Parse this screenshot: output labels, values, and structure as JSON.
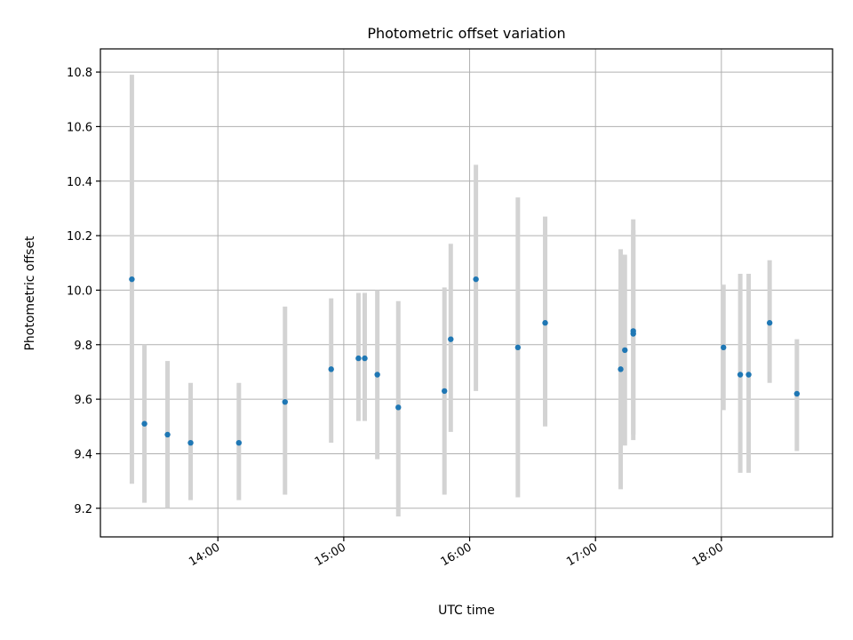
{
  "chart_data": {
    "type": "scatter",
    "title": "Photometric offset variation",
    "xlabel": "UTC time",
    "ylabel": "Photometric offset",
    "x_ticks": [
      "14:00",
      "15:00",
      "16:00",
      "17:00",
      "18:00"
    ],
    "y_ticks": [
      "9.2",
      "9.4",
      "9.6",
      "9.8",
      "10.0",
      "10.2",
      "10.4",
      "10.6",
      "10.8"
    ],
    "xlim": [
      "13:04",
      "18:53"
    ],
    "ylim": [
      9.095,
      10.885
    ],
    "grid": true,
    "colors": {
      "point": "#1f77b4",
      "errorbar": "#d3d3d3"
    },
    "points": [
      {
        "t": "13:19",
        "y": 10.04,
        "lo": 9.29,
        "hi": 10.79
      },
      {
        "t": "13:25",
        "y": 9.51,
        "lo": 9.22,
        "hi": 9.8
      },
      {
        "t": "13:36",
        "y": 9.47,
        "lo": 9.2,
        "hi": 9.74
      },
      {
        "t": "13:47",
        "y": 9.44,
        "lo": 9.23,
        "hi": 9.66
      },
      {
        "t": "14:10",
        "y": 9.44,
        "lo": 9.23,
        "hi": 9.66
      },
      {
        "t": "14:32",
        "y": 9.59,
        "lo": 9.25,
        "hi": 9.94
      },
      {
        "t": "14:54",
        "y": 9.71,
        "lo": 9.44,
        "hi": 9.97
      },
      {
        "t": "15:07",
        "y": 9.75,
        "lo": 9.52,
        "hi": 9.99
      },
      {
        "t": "15:10",
        "y": 9.75,
        "lo": 9.52,
        "hi": 9.99
      },
      {
        "t": "15:16",
        "y": 9.69,
        "lo": 9.38,
        "hi": 10.0
      },
      {
        "t": "15:26",
        "y": 9.57,
        "lo": 9.17,
        "hi": 9.96
      },
      {
        "t": "15:48",
        "y": 9.63,
        "lo": 9.25,
        "hi": 10.01
      },
      {
        "t": "15:51",
        "y": 9.82,
        "lo": 9.48,
        "hi": 10.17
      },
      {
        "t": "16:03",
        "y": 10.04,
        "lo": 9.63,
        "hi": 10.46
      },
      {
        "t": "16:23",
        "y": 9.79,
        "lo": 9.24,
        "hi": 10.34
      },
      {
        "t": "16:36",
        "y": 9.88,
        "lo": 9.5,
        "hi": 10.27
      },
      {
        "t": "17:12",
        "y": 9.71,
        "lo": 9.27,
        "hi": 10.15
      },
      {
        "t": "17:14",
        "y": 9.78,
        "lo": 9.43,
        "hi": 10.13
      },
      {
        "t": "17:18",
        "y": 9.85,
        "lo": 9.45,
        "hi": 10.26
      },
      {
        "t": "17:18",
        "y": 9.84,
        "lo": 9.47,
        "hi": 10.22
      },
      {
        "t": "18:01",
        "y": 9.79,
        "lo": 9.56,
        "hi": 10.02
      },
      {
        "t": "18:09",
        "y": 9.69,
        "lo": 9.33,
        "hi": 10.06
      },
      {
        "t": "18:13",
        "y": 9.69,
        "lo": 9.33,
        "hi": 10.06
      },
      {
        "t": "18:23",
        "y": 9.88,
        "lo": 9.66,
        "hi": 10.11
      },
      {
        "t": "18:36",
        "y": 9.62,
        "lo": 9.41,
        "hi": 9.82
      }
    ]
  }
}
